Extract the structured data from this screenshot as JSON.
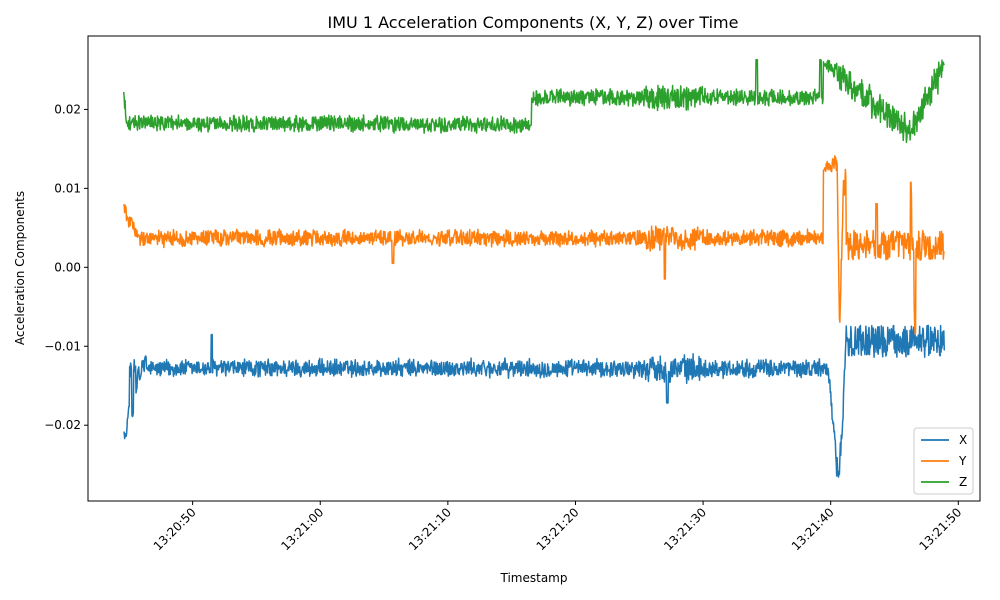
{
  "chart_data": {
    "type": "line",
    "title": "IMU 1 Acceleration Components (X, Y, Z) over Time",
    "xlabel": "Timestamp",
    "ylabel": "Acceleration Components",
    "x_range": [
      "13:20:44.6",
      "13:21:48.9"
    ],
    "xlim": [
      "13:20:41.8",
      "13:21:51.7"
    ],
    "ylim": [
      -0.0296,
      0.0293
    ],
    "x_ticks": [
      "13:20:50",
      "13:21:00",
      "13:21:10",
      "13:21:20",
      "13:21:30",
      "13:21:40",
      "13:21:50"
    ],
    "y_ticks": [
      -0.02,
      -0.01,
      0.0,
      0.01,
      0.02
    ],
    "y_tick_labels": [
      "−0.02",
      "−0.01",
      "0.00",
      "0.01",
      "0.02"
    ],
    "grid": false,
    "legend_position": "lower-right",
    "series": [
      {
        "name": "X",
        "color": "#1f77b4",
        "baseline": -0.0128,
        "noise": 0.0011,
        "points": [
          {
            "t": "13:20:44.6",
            "v": -0.0208
          },
          {
            "t": "13:20:44.8",
            "v": -0.0215
          },
          {
            "t": "13:20:45.0",
            "v": -0.0175
          },
          {
            "t": "13:20:45.3",
            "v": -0.019
          },
          {
            "t": "13:20:45.6",
            "v": -0.0155
          },
          {
            "t": "13:20:45.9",
            "v": -0.014
          },
          {
            "t": "13:20:46.3",
            "v": -0.0112
          },
          {
            "t": "13:20:47.0",
            "v": -0.013
          },
          {
            "t": "13:20:51.5",
            "v": -0.0085
          },
          {
            "t": "13:21:20.0",
            "v": -0.0128
          },
          {
            "t": "13:21:27.2",
            "v": -0.0172
          },
          {
            "t": "13:21:39.8",
            "v": -0.0128
          },
          {
            "t": "13:21:40.6",
            "v": -0.0268
          },
          {
            "t": "13:21:40.9",
            "v": -0.021
          },
          {
            "t": "13:21:41.3",
            "v": -0.005
          },
          {
            "t": "13:21:46.2",
            "v": -0.003
          },
          {
            "t": "13:21:46.5",
            "v": -0.0152
          },
          {
            "t": "13:21:48.9",
            "v": -0.009
          }
        ]
      },
      {
        "name": "Y",
        "color": "#ff7f0e",
        "baseline": 0.0037,
        "noise": 0.001,
        "points": [
          {
            "t": "13:20:44.6",
            "v": 0.008
          },
          {
            "t": "13:20:44.9",
            "v": 0.0062
          },
          {
            "t": "13:20:45.8",
            "v": 0.004
          },
          {
            "t": "13:21:05.7",
            "v": 0.0005
          },
          {
            "t": "13:21:27.0",
            "v": -0.0015
          },
          {
            "t": "13:21:40.5",
            "v": 0.0135
          },
          {
            "t": "13:21:40.7",
            "v": -0.0082
          },
          {
            "t": "13:21:41.0",
            "v": 0.011
          },
          {
            "t": "13:21:43.6",
            "v": 0.008
          },
          {
            "t": "13:21:46.3",
            "v": 0.0108
          },
          {
            "t": "13:21:46.6",
            "v": -0.0085
          },
          {
            "t": "13:21:48.9",
            "v": 0.002
          }
        ]
      },
      {
        "name": "Z",
        "color": "#2ca02c",
        "baseline": 0.0215,
        "noise": 0.001,
        "points": [
          {
            "t": "13:20:44.6",
            "v": 0.0222
          },
          {
            "t": "13:20:44.8",
            "v": 0.0183
          },
          {
            "t": "13:21:16.5",
            "v": 0.018
          },
          {
            "t": "13:21:34.2",
            "v": 0.0263
          },
          {
            "t": "13:21:39.2",
            "v": 0.0263
          },
          {
            "t": "13:21:46.3",
            "v": 0.017
          },
          {
            "t": "13:21:48.9",
            "v": 0.0258
          }
        ]
      }
    ]
  }
}
